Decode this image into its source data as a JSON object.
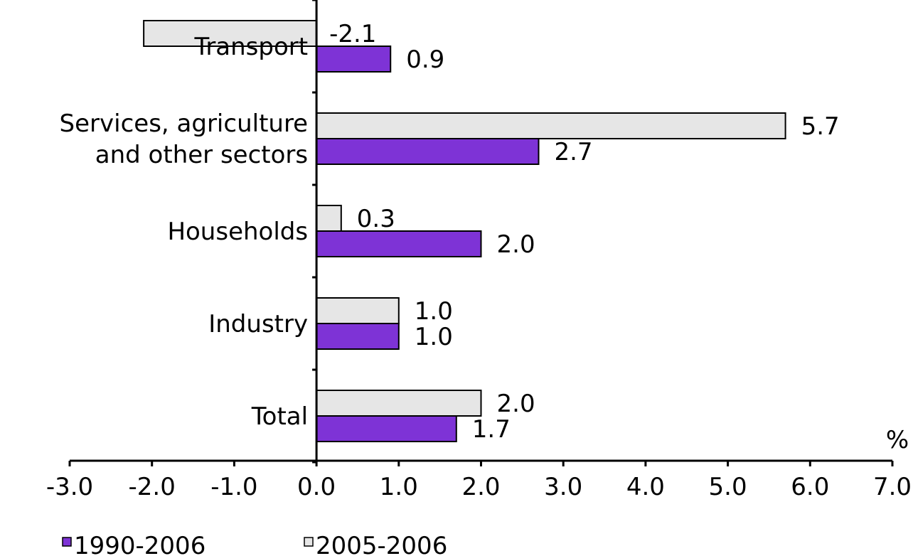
{
  "chart_data": {
    "type": "bar",
    "orientation": "horizontal",
    "categories": [
      "Transport",
      "Services, agriculture and other sectors",
      "Households",
      "Industry",
      "Total"
    ],
    "category_label_lines": [
      [
        "Transport"
      ],
      [
        "Services, agriculture",
        "and other sectors"
      ],
      [
        "Households"
      ],
      [
        "Industry"
      ],
      [
        "Total"
      ]
    ],
    "series": [
      {
        "name": "2005-2006",
        "color": "#e6e6e6",
        "values": [
          -2.1,
          5.7,
          0.3,
          1.0,
          2.0
        ],
        "labels": [
          "-2.1",
          "5.7",
          "0.3",
          "1.0",
          "2.0"
        ]
      },
      {
        "name": "1990-2006",
        "color": "#7e33d6",
        "values": [
          0.9,
          2.7,
          2.0,
          1.0,
          1.7
        ],
        "labels": [
          "0.9",
          "2.7",
          "2.0",
          "1.0",
          "1.7"
        ]
      }
    ],
    "xlim": [
      -3.0,
      7.0
    ],
    "xticks": [
      -3.0,
      -2.0,
      -1.0,
      0.0,
      1.0,
      2.0,
      3.0,
      4.0,
      5.0,
      6.0,
      7.0
    ],
    "xtick_labels": [
      "-3.0",
      "-2.0",
      "-1.0",
      "0.0",
      "1.0",
      "2.0",
      "3.0",
      "4.0",
      "5.0",
      "6.0",
      "7.0"
    ],
    "unit_label": "%",
    "legend": [
      {
        "name": "1990-2006",
        "color": "#7e33d6"
      },
      {
        "name": "2005-2006",
        "color": "#e6e6e6"
      }
    ],
    "legend_position": "bottom-left",
    "grid": false
  }
}
